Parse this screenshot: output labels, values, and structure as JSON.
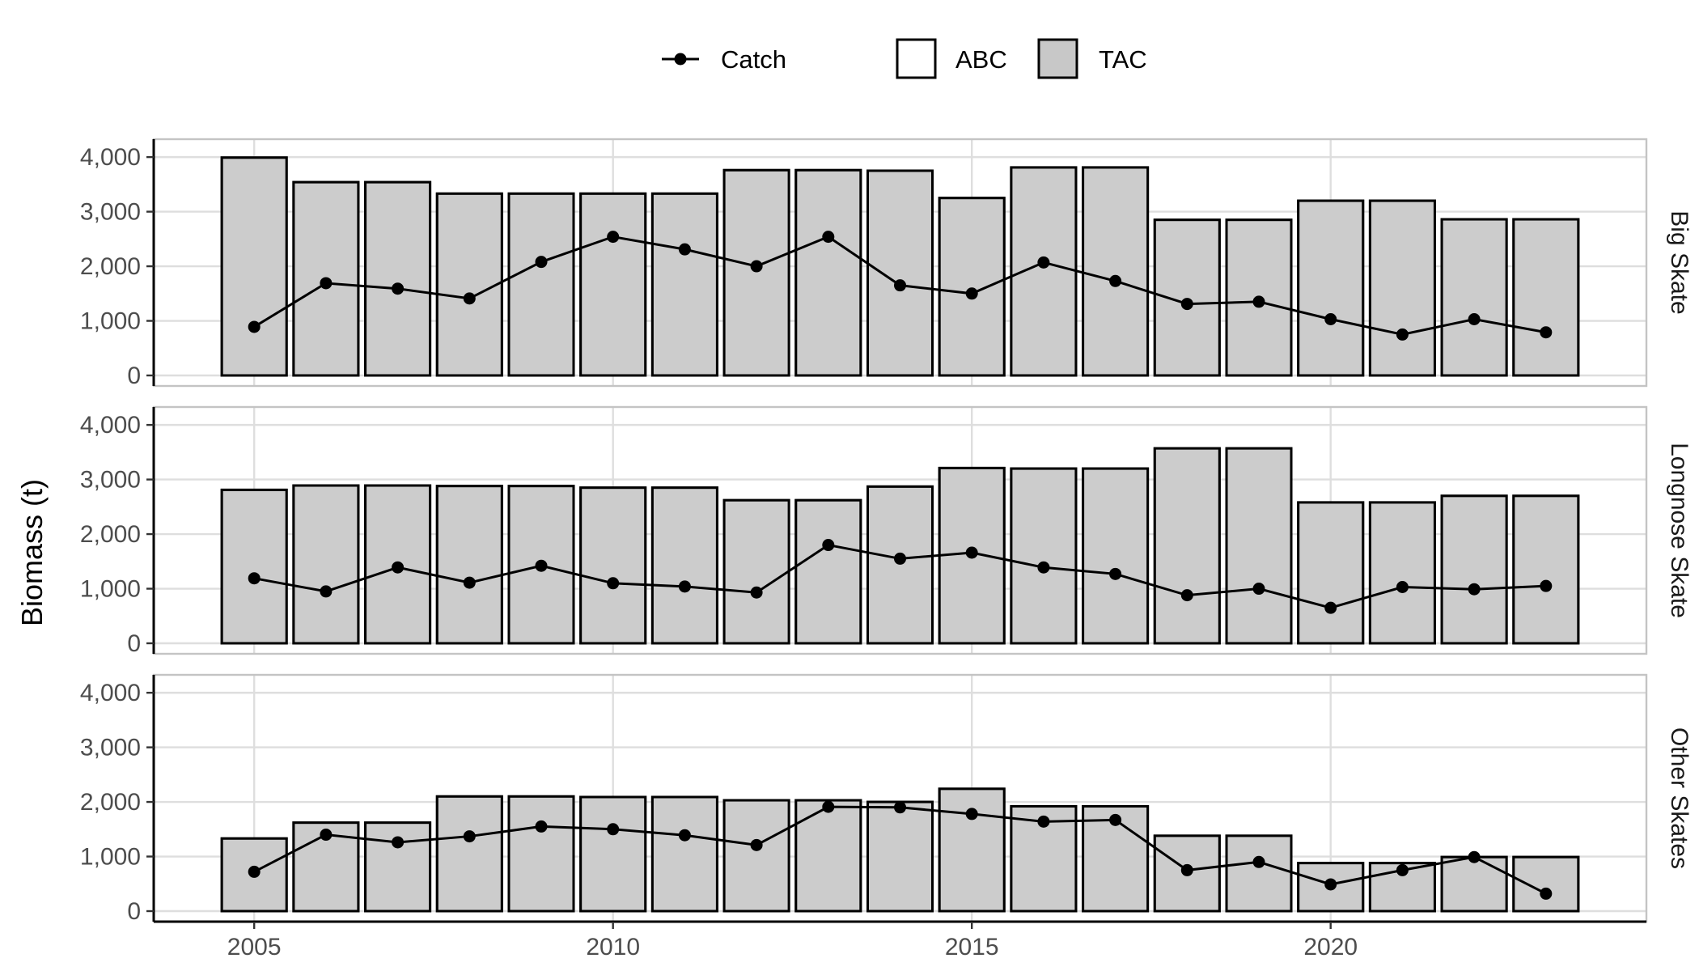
{
  "chart_data": {
    "type": "bar",
    "ylabel": "Biomass (t)",
    "xlabel": "",
    "x": [
      2005,
      2006,
      2007,
      2008,
      2009,
      2010,
      2011,
      2012,
      2013,
      2014,
      2015,
      2016,
      2017,
      2018,
      2019,
      2020,
      2021,
      2022,
      2023
    ],
    "xticks": [
      2005,
      2010,
      2015,
      2020
    ],
    "xtick_labels": [
      "2005",
      "2010",
      "2015",
      "2020"
    ],
    "xlim": [
      2003.6,
      2024.4
    ],
    "ylim": [
      0,
      4150
    ],
    "yticks": [
      0,
      1000,
      2000,
      3000,
      4000
    ],
    "ytick_labels": [
      "0",
      "1,000",
      "2,000",
      "3,000",
      "4,000"
    ],
    "grid": true,
    "legend": {
      "position": "top",
      "items": [
        {
          "label": "Catch",
          "kind": "line-point"
        },
        {
          "label": "ABC",
          "kind": "box",
          "fill": "#ffffff"
        },
        {
          "label": "TAC",
          "kind": "box",
          "fill": "#c8c8c8"
        }
      ]
    },
    "colors": {
      "bar_fill": "#cccccc",
      "bar_stroke": "#000000",
      "line": "#000000",
      "grid": "#dedede",
      "panel_border": "#c4c4c4",
      "strip_fill": "#ffffff"
    },
    "panels": [
      {
        "name": "Big Skate",
        "series": [
          {
            "name": "ABC",
            "values": [
              3990,
              3540,
              3540,
              3330,
              3330,
              3330,
              3330,
              3760,
              3760,
              3750,
              3250,
              3810,
              3810,
              2850,
              2850,
              3200,
              3200,
              2860,
              2860
            ]
          },
          {
            "name": "TAC",
            "values": [
              3990,
              3540,
              3540,
              3330,
              3330,
              3330,
              3330,
              3760,
              3760,
              3750,
              3250,
              3810,
              3810,
              2850,
              2850,
              3200,
              3200,
              2860,
              2860
            ]
          },
          {
            "name": "Catch",
            "values": [
              890,
              1690,
              1590,
              1410,
              2080,
              2540,
              2310,
              2000,
              2540,
              1650,
              1500,
              2070,
              1730,
              1310,
              1350,
              1030,
              750,
              1030,
              790
            ]
          }
        ]
      },
      {
        "name": "Longnose Skate",
        "series": [
          {
            "name": "ABC",
            "values": [
              2810,
              2890,
              2890,
              2880,
              2880,
              2850,
              2850,
              2620,
              2620,
              2870,
              3210,
              3200,
              3200,
              3570,
              3570,
              2580,
              2580,
              2700,
              2700
            ]
          },
          {
            "name": "TAC",
            "values": [
              2810,
              2890,
              2890,
              2880,
              2880,
              2850,
              2850,
              2620,
              2620,
              2870,
              3210,
              3200,
              3200,
              3570,
              3570,
              2580,
              2580,
              2700,
              2700
            ]
          },
          {
            "name": "Catch",
            "values": [
              1190,
              950,
              1390,
              1110,
              1420,
              1100,
              1040,
              930,
              1800,
              1550,
              1660,
              1390,
              1270,
              880,
              1000,
              650,
              1030,
              990,
              1050
            ]
          }
        ]
      },
      {
        "name": "Other Skates",
        "series": [
          {
            "name": "ABC",
            "values": [
              1330,
              1620,
              1620,
              2100,
              2100,
              2090,
              2090,
              2030,
              2030,
              2000,
              2240,
              1920,
              1920,
              1380,
              1380,
              880,
              880,
              990,
              990
            ]
          },
          {
            "name": "TAC",
            "values": [
              1330,
              1620,
              1620,
              2100,
              2100,
              2090,
              2090,
              2030,
              2030,
              2000,
              2240,
              1920,
              1920,
              1380,
              1380,
              880,
              880,
              990,
              990
            ]
          },
          {
            "name": "Catch",
            "values": [
              720,
              1400,
              1260,
              1370,
              1550,
              1500,
              1390,
              1210,
              1910,
              1900,
              1780,
              1640,
              1670,
              750,
              900,
              490,
              750,
              990,
              320
            ]
          }
        ]
      }
    ]
  }
}
